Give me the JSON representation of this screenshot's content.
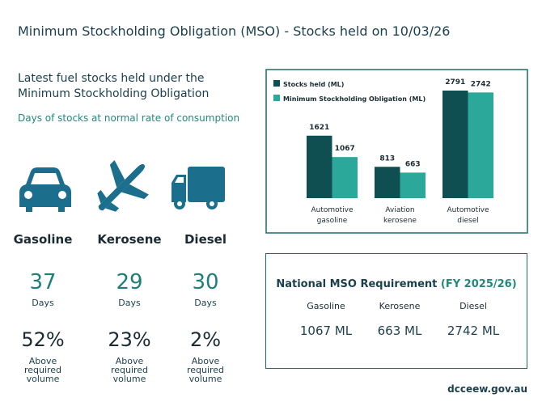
{
  "header": {
    "title": "Minimum Stockholding Obligation (MSO) - Stocks held on 10/03/26"
  },
  "left": {
    "heading": "Latest fuel stocks held under the Minimum Stockholding Obligation",
    "subheading": "Days of stocks at normal rate of consumption",
    "fuels": [
      {
        "name": "Gasoline",
        "days": 37,
        "days_label": "Days",
        "percent": "52%",
        "caption": "Above required volume"
      },
      {
        "name": "Kerosene",
        "days": 29,
        "days_label": "Days",
        "percent": "23%",
        "caption": "Above required volume"
      },
      {
        "name": "Diesel",
        "days": 30,
        "days_label": "Days",
        "percent": "2%",
        "caption": "Above required volume"
      }
    ]
  },
  "chart_data": {
    "type": "bar",
    "categories": [
      "Automotive gasoline",
      "Aviation kerosene",
      "Automotive diesel"
    ],
    "series": [
      {
        "name": "Stocks held (ML)",
        "color": "#0f4f52",
        "values": [
          1621,
          813,
          2791
        ]
      },
      {
        "name": "Minimum Stockholding Obligation (ML)",
        "color": "#2ba89a",
        "values": [
          1067,
          663,
          2742
        ]
      }
    ]
  },
  "requirement": {
    "title": "National MSO Requirement",
    "subtitle": "(FY 2025/26)",
    "items": [
      {
        "name": "Gasoline",
        "value": "1067 ML"
      },
      {
        "name": "Kerosene",
        "value": "663 ML"
      },
      {
        "name": "Diesel",
        "value": "2742 ML"
      }
    ]
  },
  "footer": "dcceew.gov.au"
}
